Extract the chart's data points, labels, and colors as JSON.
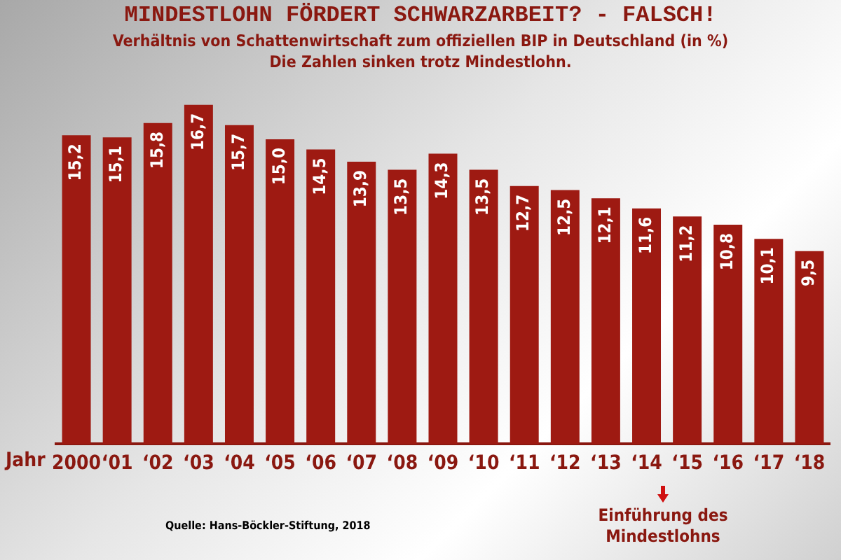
{
  "chart_data": {
    "type": "bar",
    "title": "MINDESTLOHN FÖRDERT SCHWARZARBEIT? - FALSCH!",
    "subtitle": "Verhältnis von Schattenwirtschaft zum offiziellen BIP in Deutschland (in %)\nDie Zahlen sinken trotz Mindestlohn.",
    "xlabel": "Jahr",
    "categories": [
      "2000",
      "‘01",
      "‘02",
      "‘03",
      "‘04",
      "‘05",
      "‘06",
      "‘07",
      "‘08",
      "‘09",
      "‘10",
      "‘11",
      "‘12",
      "‘13",
      "‘14",
      "‘15",
      "‘16",
      "‘17",
      "‘18"
    ],
    "values": [
      15.2,
      15.1,
      15.8,
      16.7,
      15.7,
      15.0,
      14.5,
      13.9,
      13.5,
      14.3,
      13.5,
      12.7,
      12.5,
      12.1,
      11.6,
      11.2,
      10.8,
      10.1,
      9.5
    ],
    "value_labels": [
      "15,2",
      "15,1",
      "15,8",
      "16,7",
      "15,7",
      "15,0",
      "14,5",
      "13,9",
      "13,5",
      "14,3",
      "13,5",
      "12,7",
      "12,5",
      "12,1",
      "11,6",
      "11,2",
      "10,8",
      "10,1",
      "9,5"
    ],
    "color": "#9e1a12",
    "grid": false,
    "legend": false,
    "annotations": [
      "Einführung des Mindestlohns",
      "Quelle: Hans-Böckler-Stiftung, 2018"
    ]
  }
}
